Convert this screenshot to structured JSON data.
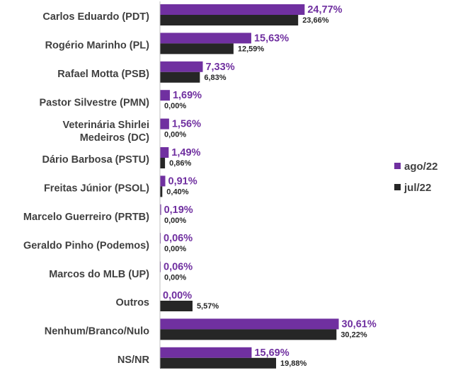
{
  "chart_data": {
    "type": "bar",
    "orientation": "horizontal",
    "categories": [
      [
        "Carlos Eduardo (PDT)"
      ],
      [
        "Rogério Marinho (PL)"
      ],
      [
        "Rafael Motta (PSB)"
      ],
      [
        "Pastor Silvestre (PMN)"
      ],
      [
        "Veterinária Shirlei",
        "Medeiros (DC)"
      ],
      [
        "Dário Barbosa (PSTU)"
      ],
      [
        "Freitas Júnior (PSOL)"
      ],
      [
        "Marcelo Guerreiro (PRTB)"
      ],
      [
        "Geraldo Pinho (Podemos)"
      ],
      [
        "Marcos do MLB (UP)"
      ],
      [
        "Outros"
      ],
      [
        "Nenhum/Branco/Nulo"
      ],
      [
        "NS/NR"
      ]
    ],
    "series": [
      {
        "name": "ago/22",
        "color": "#7030A0",
        "values": [
          24.77,
          15.63,
          7.33,
          1.69,
          1.56,
          1.49,
          0.91,
          0.19,
          0.06,
          0.06,
          0.0,
          30.61,
          15.69
        ],
        "labels": [
          "24,77%",
          "15,63%",
          "7,33%",
          "1,69%",
          "1,56%",
          "1,49%",
          "0,91%",
          "0,19%",
          "0,06%",
          "0,06%",
          "0,00%",
          "30,61%",
          "15,69%"
        ]
      },
      {
        "name": "jul/22",
        "color": "#262626",
        "values": [
          23.66,
          12.59,
          6.83,
          0.0,
          0.0,
          0.86,
          0.4,
          0.0,
          0.0,
          0.0,
          5.57,
          30.22,
          19.88
        ],
        "labels": [
          "23,66%",
          "12,59%",
          "6,83%",
          "0,00%",
          "0,00%",
          "0,86%",
          "0,40%",
          "0,00%",
          "0,00%",
          "0,00%",
          "5,57%",
          "30,22%",
          "19,88%"
        ]
      }
    ],
    "legend": {
      "position": "right",
      "order": [
        "ago/22",
        "jul/22"
      ]
    },
    "xlim": [
      0,
      32
    ],
    "grid": false,
    "axis_line": true
  }
}
